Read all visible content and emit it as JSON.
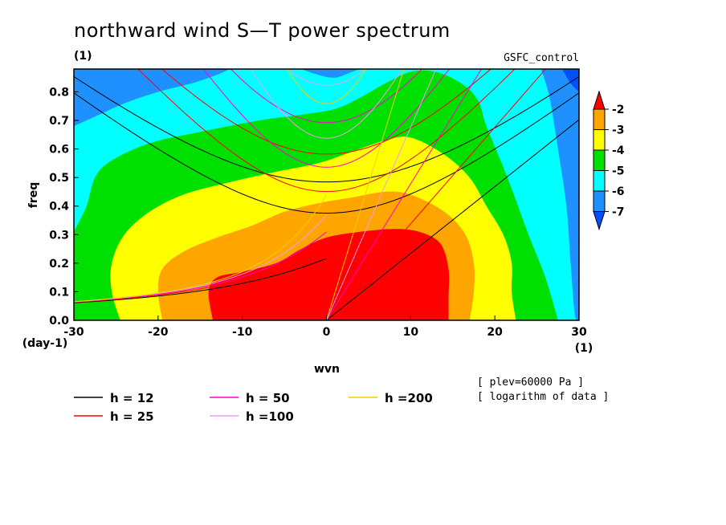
{
  "chart_data": {
    "type": "heatmap",
    "title": "northward wind S—T power spectrum",
    "subtitle_left": "(1)",
    "subtitle_right": "GSFC_control",
    "xlabel": "wvn",
    "ylabel": "freq",
    "x_unit_label": "(1)",
    "y_unit_label": "(day-1)",
    "xlim": [
      -30,
      30
    ],
    "ylim": [
      0,
      0.88
    ],
    "x_ticks": [
      "-30",
      "-20",
      "-10",
      "0",
      "10",
      "20",
      "30"
    ],
    "y_ticks": [
      "0.0",
      "0.1",
      "0.2",
      "0.3",
      "0.4",
      "0.5",
      "0.6",
      "0.7",
      "0.8"
    ],
    "colorbar": {
      "labels": [
        "-2",
        "-3",
        "-4",
        "-5",
        "-6",
        "-7"
      ],
      "levels": [
        -2,
        -3,
        -4,
        -5,
        -6,
        -7
      ],
      "colors": [
        "#ff0000",
        "#ffa500",
        "#ffff00",
        "#00e000",
        "#00ffff",
        "#1e90ff",
        "#0050ff"
      ]
    },
    "contours": [
      {
        "level": -2,
        "color": "#ff0000",
        "points": [
          [
            -13.5,
            0
          ],
          [
            -14,
            0.1
          ],
          [
            -13,
            0.15
          ],
          [
            -10,
            0.17
          ],
          [
            -6,
            0.2
          ],
          [
            -3,
            0.25
          ],
          [
            0,
            0.29
          ],
          [
            4,
            0.31
          ],
          [
            8,
            0.32
          ],
          [
            11,
            0.31
          ],
          [
            13.5,
            0.27
          ],
          [
            14.5,
            0.18
          ],
          [
            14.5,
            0.08
          ],
          [
            14.5,
            0
          ]
        ]
      },
      {
        "level": -3,
        "color": "#ffa500",
        "points": [
          [
            -19.5,
            0
          ],
          [
            -20,
            0.1
          ],
          [
            -19.5,
            0.18
          ],
          [
            -17,
            0.24
          ],
          [
            -13,
            0.29
          ],
          [
            -9,
            0.33
          ],
          [
            -5,
            0.38
          ],
          [
            -1,
            0.41
          ],
          [
            3,
            0.43
          ],
          [
            7,
            0.45
          ],
          [
            10,
            0.44
          ],
          [
            14,
            0.38
          ],
          [
            16.5,
            0.3
          ],
          [
            17.5,
            0.2
          ],
          [
            17.5,
            0.1
          ],
          [
            17,
            0
          ]
        ]
      },
      {
        "level": -4,
        "color": "#ffff00",
        "points": [
          [
            -24.5,
            0
          ],
          [
            -25.5,
            0.1
          ],
          [
            -25.5,
            0.2
          ],
          [
            -24,
            0.3
          ],
          [
            -21,
            0.38
          ],
          [
            -17,
            0.44
          ],
          [
            -12,
            0.48
          ],
          [
            -6,
            0.52
          ],
          [
            -1,
            0.55
          ],
          [
            3,
            0.59
          ],
          [
            7,
            0.63
          ],
          [
            10,
            0.64
          ],
          [
            14,
            0.58
          ],
          [
            17,
            0.5
          ],
          [
            19,
            0.4
          ],
          [
            21,
            0.3
          ],
          [
            22,
            0.2
          ],
          [
            22,
            0.1
          ],
          [
            22.5,
            0
          ]
        ]
      },
      {
        "level": -5,
        "color": "#00e000",
        "points": [
          [
            -30,
            0.31
          ],
          [
            -28.5,
            0.4
          ],
          [
            -27.5,
            0.5
          ],
          [
            -25.5,
            0.56
          ],
          [
            -21,
            0.62
          ],
          [
            -15,
            0.66
          ],
          [
            -8,
            0.7
          ],
          [
            -3,
            0.72
          ],
          [
            1,
            0.74
          ],
          [
            4,
            0.78
          ],
          [
            7,
            0.83
          ],
          [
            10,
            0.87
          ],
          [
            13,
            0.87
          ],
          [
            16,
            0.83
          ],
          [
            18,
            0.77
          ],
          [
            19,
            0.68
          ],
          [
            21.5,
            0.5
          ],
          [
            24,
            0.3
          ],
          [
            26,
            0.15
          ],
          [
            27.5,
            0
          ]
        ]
      },
      {
        "level": -6,
        "color": "#00ffff",
        "points": [
          [
            -30,
            0.68
          ],
          [
            -27,
            0.72
          ],
          [
            -24,
            0.76
          ],
          [
            -20,
            0.8
          ],
          [
            -16,
            0.83
          ],
          [
            -13,
            0.86
          ],
          [
            -11.5,
            0.88
          ]
        ]
      },
      {
        "level": -6,
        "color": "#00ffff",
        "points": [
          [
            -3,
            0.88
          ],
          [
            -1,
            0.86
          ],
          [
            1,
            0.85
          ],
          [
            3,
            0.87
          ],
          [
            4,
            0.88
          ]
        ]
      },
      {
        "level": -6,
        "color": "#00ffff",
        "points": [
          [
            25.5,
            0.88
          ],
          [
            26.5,
            0.78
          ],
          [
            27.5,
            0.6
          ],
          [
            28.5,
            0.4
          ],
          [
            29,
            0.2
          ],
          [
            29.5,
            0.02
          ],
          [
            30,
            0
          ]
        ]
      },
      {
        "level": -7,
        "color": "#0050ff",
        "points": [
          [
            28,
            0.88
          ],
          [
            29,
            0.83
          ],
          [
            30,
            0.8
          ]
        ]
      }
    ],
    "series": [
      {
        "name": "h = 12",
        "color": "#000000",
        "h": 12
      },
      {
        "name": "h = 25",
        "color": "#ff0000",
        "h": 25
      },
      {
        "name": "h = 50",
        "color": "#ff00cc",
        "h": 50
      },
      {
        "name": "h =100",
        "color": "#e8a0f0",
        "h": 100
      },
      {
        "name": "h =200",
        "color": "#f0d000",
        "h": 200
      }
    ],
    "notes": [
      "[ plev=60000 Pa ]",
      "[ logarithm of data ]"
    ]
  }
}
